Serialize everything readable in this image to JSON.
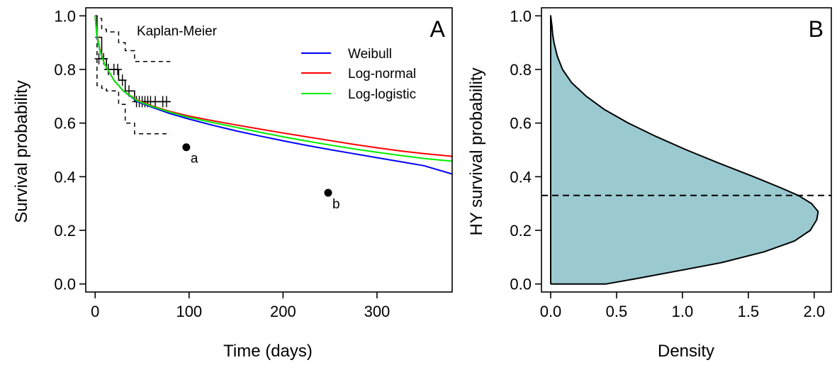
{
  "chart_data": [
    {
      "panel": "A",
      "type": "line",
      "xlabel": "Time (days)",
      "ylabel": "Survival probability",
      "xlim": [
        -10,
        380
      ],
      "ylim": [
        -0.03,
        1.03
      ],
      "xticks": [
        "0",
        "100",
        "200",
        "300"
      ],
      "yticks": [
        "0.0",
        "0.2",
        "0.4",
        "0.6",
        "0.8",
        "1.0"
      ],
      "xtick_values": [
        0,
        100,
        200,
        300
      ],
      "ytick_values": [
        0.0,
        0.2,
        0.4,
        0.6,
        0.8,
        1.0
      ],
      "grid": false,
      "legend": {
        "position": "top-right",
        "entries": [
          "Weibull",
          "Log-normal",
          "Log-logistic"
        ]
      },
      "annotations": {
        "km_label": "Kaplan-Meier",
        "point_a": "a",
        "point_b": "b"
      },
      "series": [
        {
          "name": "Weibull",
          "color": "#0000ff",
          "x": [
            0,
            2,
            5,
            10,
            20,
            30,
            45,
            60,
            80,
            100,
            125,
            150,
            175,
            200,
            225,
            250,
            275,
            300,
            325,
            350,
            380
          ],
          "y": [
            1.0,
            0.92,
            0.87,
            0.82,
            0.76,
            0.72,
            0.68,
            0.66,
            0.635,
            0.615,
            0.592,
            0.571,
            0.552,
            0.534,
            0.517,
            0.501,
            0.486,
            0.471,
            0.456,
            0.441,
            0.41
          ]
        },
        {
          "name": "Log-normal",
          "color": "#ff0000",
          "x": [
            0,
            2,
            5,
            10,
            20,
            30,
            45,
            60,
            80,
            100,
            125,
            150,
            175,
            200,
            225,
            250,
            275,
            300,
            325,
            350,
            380
          ],
          "y": [
            1.0,
            0.93,
            0.875,
            0.82,
            0.76,
            0.72,
            0.685,
            0.665,
            0.643,
            0.626,
            0.609,
            0.593,
            0.578,
            0.563,
            0.549,
            0.535,
            0.521,
            0.508,
            0.496,
            0.486,
            0.476
          ]
        },
        {
          "name": "Log-logistic",
          "color": "#00ee00",
          "x": [
            0,
            2,
            5,
            10,
            20,
            30,
            45,
            60,
            80,
            100,
            125,
            150,
            175,
            200,
            225,
            250,
            275,
            300,
            325,
            350,
            380
          ],
          "y": [
            1.0,
            0.925,
            0.872,
            0.82,
            0.76,
            0.72,
            0.683,
            0.663,
            0.64,
            0.621,
            0.602,
            0.584,
            0.566,
            0.549,
            0.533,
            0.518,
            0.504,
            0.491,
            0.479,
            0.468,
            0.458
          ]
        }
      ],
      "kaplan_meier": {
        "estimate": {
          "x": [
            0,
            2,
            2,
            7,
            7,
            12,
            12,
            25,
            25,
            32,
            32,
            42,
            42,
            80
          ],
          "y": [
            1.0,
            1.0,
            0.92,
            0.92,
            0.84,
            0.84,
            0.8,
            0.8,
            0.76,
            0.76,
            0.72,
            0.72,
            0.68,
            0.68
          ]
        },
        "upper_ci": {
          "x": [
            0,
            2,
            2,
            7,
            7,
            12,
            12,
            25,
            25,
            32,
            32,
            42,
            42,
            80
          ],
          "y": [
            1.0,
            1.0,
            0.99,
            0.99,
            0.95,
            0.95,
            0.94,
            0.94,
            0.9,
            0.9,
            0.87,
            0.87,
            0.83,
            0.83
          ]
        },
        "lower_ci": {
          "x": [
            0,
            2,
            2,
            7,
            7,
            12,
            12,
            25,
            25,
            32,
            32,
            42,
            42,
            80
          ],
          "y": [
            0.92,
            0.92,
            0.74,
            0.74,
            0.73,
            0.73,
            0.72,
            0.72,
            0.67,
            0.67,
            0.6,
            0.6,
            0.56,
            0.56
          ]
        },
        "censor_x": [
          4,
          9,
          14,
          20,
          24,
          29,
          36,
          44,
          47,
          50,
          53,
          56,
          59,
          64,
          72,
          76
        ],
        "censor_y": [
          0.84,
          0.84,
          0.8,
          0.8,
          0.8,
          0.76,
          0.72,
          0.68,
          0.68,
          0.68,
          0.68,
          0.68,
          0.68,
          0.68,
          0.68,
          0.68
        ]
      },
      "points": [
        {
          "label": "a",
          "x": 97,
          "y": 0.51
        },
        {
          "label": "b",
          "x": 248,
          "y": 0.34
        }
      ]
    },
    {
      "panel": "B",
      "type": "area",
      "xlabel": "Density",
      "ylabel": "HY survival probability",
      "xlim": [
        -0.07,
        2.13
      ],
      "ylim": [
        -0.03,
        1.03
      ],
      "xticks": [
        "0.0",
        "0.5",
        "1.0",
        "1.5",
        "2.0"
      ],
      "yticks": [
        "0.0",
        "0.2",
        "0.4",
        "0.6",
        "0.8",
        "1.0"
      ],
      "xtick_values": [
        0.0,
        0.5,
        1.0,
        1.5,
        2.0
      ],
      "ytick_values": [
        0.0,
        0.2,
        0.4,
        0.6,
        0.8,
        1.0
      ],
      "grid": false,
      "fill_color": "#9bc9d0",
      "reference_line_y": 0.33,
      "density": {
        "y": [
          0.0,
          0.02,
          0.05,
          0.08,
          0.12,
          0.16,
          0.2,
          0.24,
          0.27,
          0.3,
          0.33,
          0.36,
          0.4,
          0.45,
          0.5,
          0.55,
          0.6,
          0.65,
          0.7,
          0.75,
          0.8,
          0.85,
          0.88,
          0.9,
          0.93,
          0.96,
          0.98,
          1.0
        ],
        "x": [
          0.42,
          0.65,
          0.98,
          1.3,
          1.62,
          1.85,
          1.97,
          2.02,
          2.03,
          1.98,
          1.88,
          1.74,
          1.54,
          1.28,
          1.03,
          0.8,
          0.59,
          0.41,
          0.27,
          0.16,
          0.09,
          0.05,
          0.035,
          0.025,
          0.015,
          0.01,
          0.005,
          0.0
        ]
      }
    }
  ]
}
